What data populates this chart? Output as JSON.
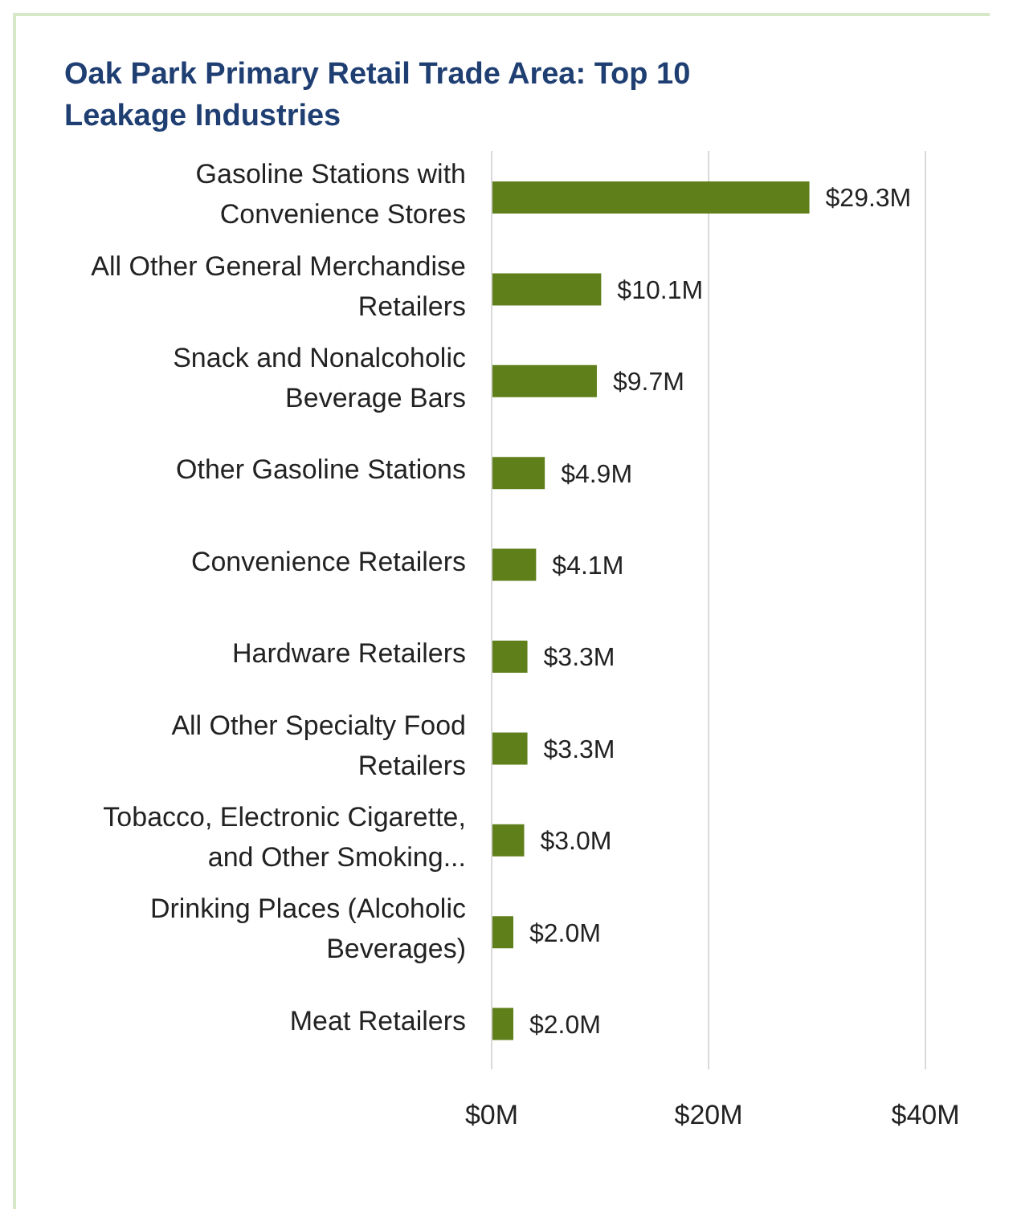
{
  "chart_data": {
    "type": "bar",
    "orientation": "horizontal",
    "title": "Oak Park Primary Retail Trade Area: Top 10 Leakage Industries",
    "categories": [
      "Gasoline Stations with Convenience Stores",
      "All Other General Merchandise Retailers",
      "Snack and Nonalcoholic Beverage Bars",
      "Other Gasoline Stations",
      "Convenience Retailers",
      "Hardware Retailers",
      "All Other Specialty Food Retailers",
      "Tobacco, Electronic Cigarette, and Other Smoking...",
      "Drinking Places (Alcoholic Beverages)",
      "Meat Retailers"
    ],
    "values": [
      29.3,
      10.1,
      9.7,
      4.9,
      4.1,
      3.3,
      3.3,
      3.0,
      2.0,
      2.0
    ],
    "value_labels": [
      "$29.3M",
      "$10.1M",
      "$9.7M",
      "$4.9M",
      "$4.1M",
      "$3.3M",
      "$3.3M",
      "$3.0M",
      "$2.0M",
      "$2.0M"
    ],
    "color": "#5f7f1a",
    "xlim": [
      0,
      40
    ],
    "xticks": [
      {
        "value": 0,
        "label": "$0M"
      },
      {
        "value": 20,
        "label": "$20M"
      },
      {
        "value": 40,
        "label": "$40M"
      }
    ],
    "grid": "x",
    "legend": false
  }
}
